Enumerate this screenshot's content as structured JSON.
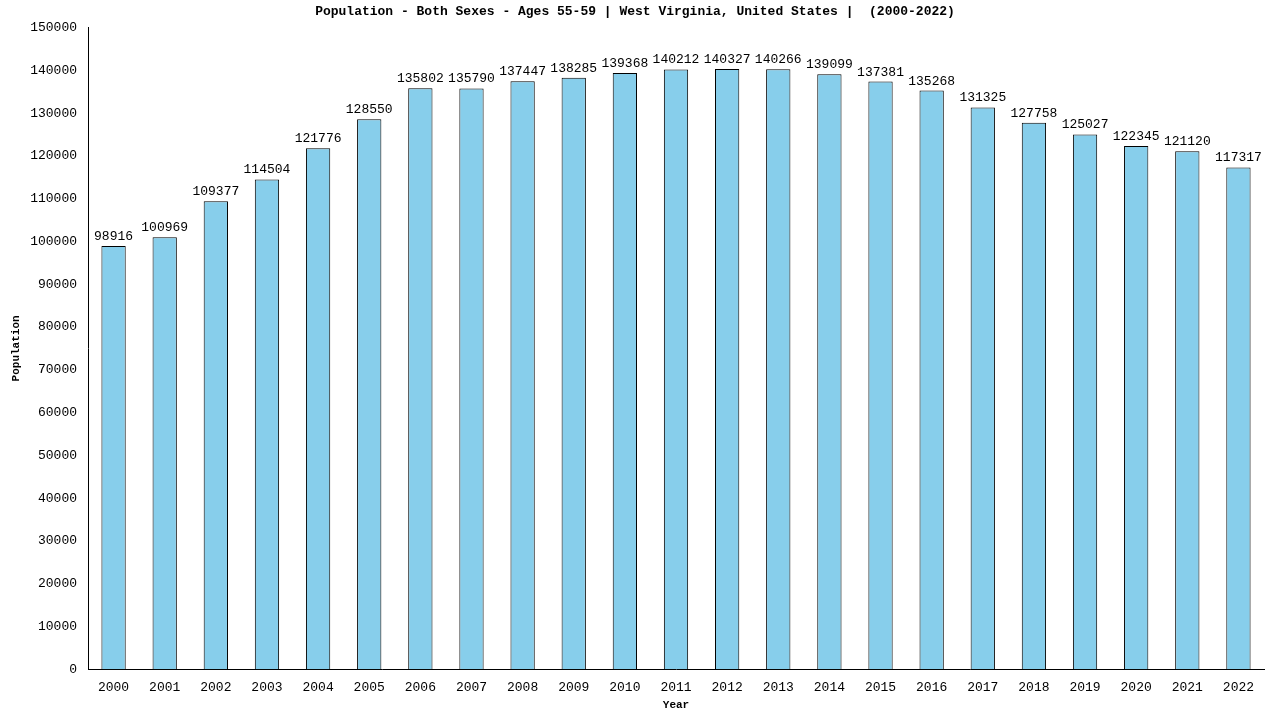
{
  "chart_data": {
    "type": "bar",
    "title": "Population - Both Sexes - Ages 55-59 | West Virginia, United States |  (2000-2022)",
    "x_label": "Year",
    "y_label": "Population",
    "categories": [
      "2000",
      "2001",
      "2002",
      "2003",
      "2004",
      "2005",
      "2006",
      "2007",
      "2008",
      "2009",
      "2010",
      "2011",
      "2012",
      "2013",
      "2014",
      "2015",
      "2016",
      "2017",
      "2018",
      "2019",
      "2020",
      "2021",
      "2022"
    ],
    "values": [
      98916,
      100969,
      109377,
      114504,
      121776,
      128550,
      135802,
      135790,
      137447,
      138285,
      139368,
      140212,
      140327,
      140266,
      139099,
      137381,
      135268,
      131325,
      127758,
      125027,
      122345,
      121120,
      117317
    ],
    "color": "#87ceeb",
    "ylim": [
      0,
      150000
    ],
    "yticks": [
      0,
      10000,
      20000,
      30000,
      40000,
      50000,
      60000,
      70000,
      80000,
      90000,
      100000,
      110000,
      120000,
      130000,
      140000,
      150000
    ],
    "grid": false,
    "data_labels": true
  }
}
